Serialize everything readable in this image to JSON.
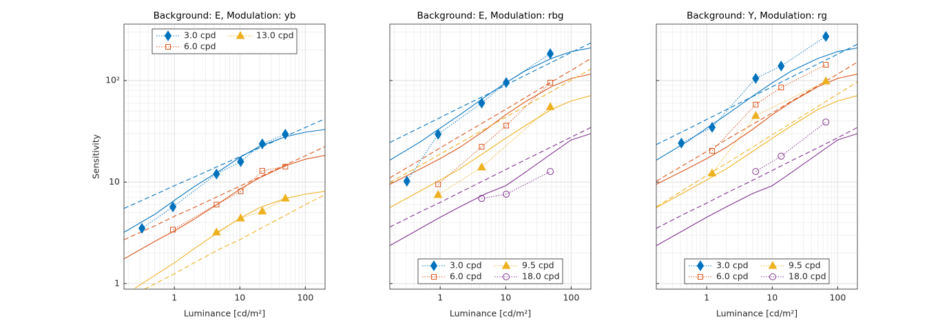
{
  "chart_data": [
    {
      "type": "line",
      "title": "Background: E, Modulation: yb",
      "xlabel": "Luminance [cd/m²]",
      "ylabel": "Sensitivity",
      "xscale": "log",
      "yscale": "log",
      "xlim": [
        0.17,
        200
      ],
      "ylim": [
        0.88,
        360
      ],
      "xticks": [
        1,
        10,
        100
      ],
      "yticks": [
        1,
        10,
        {
          "value": 100,
          "label": "10²"
        }
      ],
      "ytick_labels": true,
      "grid": true,
      "minor_grid": true,
      "legend": "top",
      "legend_columns": 2,
      "series": [
        {
          "name": "3.0 cpd",
          "color": "#0072BD",
          "marker": "diamond",
          "x": [
            0.32,
            0.95,
            4.4,
            10.3,
            22,
            49.5
          ],
          "values": [
            3.5,
            5.7,
            12,
            15.9,
            23.8,
            29.6
          ]
        },
        {
          "name": "6.0 cpd",
          "color": "#D95319",
          "marker": "square",
          "x": [
            0.95,
            4.4,
            10.3,
            22,
            49.5
          ],
          "values": [
            3.4,
            6.0,
            8.1,
            12.9,
            14.2
          ]
        },
        {
          "name": "13.0 cpd",
          "color": "#EDB120",
          "marker": "triangle",
          "x": [
            4.4,
            10.3,
            22,
            49.5
          ],
          "values": [
            3.2,
            4.4,
            5.15,
            6.9
          ]
        }
      ],
      "fits": [
        {
          "color": "#0072BD",
          "style": "solid",
          "x": [
            0.17,
            0.5,
            1,
            2,
            5,
            10,
            20,
            50,
            100,
            200
          ],
          "values": [
            3.2,
            4.8,
            6.6,
            9.0,
            13.0,
            17.5,
            22.5,
            28,
            31,
            33
          ]
        },
        {
          "color": "#0072BD",
          "style": "dashed",
          "x": [
            0.17,
            0.5,
            1,
            2,
            5,
            10,
            20,
            50,
            100,
            200
          ],
          "values": [
            5.5,
            7.5,
            9.2,
            11.2,
            14.6,
            17.8,
            21.7,
            28.3,
            34.5,
            42
          ]
        },
        {
          "color": "#D95319",
          "style": "solid",
          "x": [
            0.17,
            0.5,
            1,
            2,
            5,
            10,
            20,
            50,
            100,
            200
          ],
          "values": [
            1.75,
            2.6,
            3.3,
            4.3,
            6.3,
            8.5,
            11,
            14.5,
            16.8,
            18.3
          ]
        },
        {
          "color": "#D95319",
          "style": "dashed",
          "x": [
            0.17,
            0.5,
            1,
            2,
            5,
            10,
            20,
            50,
            100,
            200
          ],
          "values": [
            2.7,
            3.7,
            4.6,
            5.6,
            7.4,
            9.1,
            11.2,
            14.8,
            18.1,
            22.4
          ]
        },
        {
          "color": "#EDB120",
          "style": "solid",
          "x": [
            0.25,
            0.5,
            1,
            2,
            5,
            10,
            20,
            50,
            100,
            200
          ],
          "values": [
            0.9,
            1.2,
            1.6,
            2.2,
            3.3,
            4.4,
            5.6,
            6.9,
            7.6,
            8.1
          ]
        },
        {
          "color": "#EDB120",
          "style": "dashed",
          "x": [
            0.35,
            1,
            2,
            5,
            10,
            20,
            50,
            100,
            200
          ],
          "values": [
            0.88,
            1.25,
            1.6,
            2.2,
            2.7,
            3.45,
            4.7,
            6.0,
            7.5
          ]
        }
      ]
    },
    {
      "type": "line",
      "title": "Background: E, Modulation: rbg",
      "xlabel": "Luminance [cd/m²]",
      "xscale": "log",
      "yscale": "log",
      "xlim": [
        0.17,
        200
      ],
      "ylim": [
        0.88,
        360
      ],
      "xticks": [
        1,
        10,
        100
      ],
      "yticks": [
        1,
        10,
        100
      ],
      "ytick_labels": false,
      "grid": true,
      "minor_grid": true,
      "legend": "bottom",
      "legend_columns": 2,
      "series": [
        {
          "name": "3.0 cpd",
          "color": "#0072BD",
          "marker": "diamond",
          "x": [
            0.31,
            0.93,
            4.3,
            10.2,
            48
          ],
          "values": [
            10.2,
            29.6,
            60,
            95.5,
            184
          ]
        },
        {
          "name": "6.0 cpd",
          "color": "#D95319",
          "marker": "square",
          "x": [
            0.93,
            4.3,
            10.2,
            48
          ],
          "values": [
            9.5,
            22.3,
            36,
            95.5
          ]
        },
        {
          "name": "9.5 cpd",
          "color": "#EDB120",
          "marker": "triangle",
          "x": [
            0.93,
            4.3,
            48
          ],
          "values": [
            7.5,
            14,
            55
          ]
        },
        {
          "name": "18.0 cpd",
          "color": "#7E2F8E",
          "marker": "circle",
          "x": [
            4.3,
            10.2,
            48
          ],
          "values": [
            6.9,
            7.6,
            12.7
          ]
        }
      ],
      "fits": [
        {
          "color": "#0072BD",
          "style": "solid",
          "x": [
            0.17,
            0.5,
            1,
            2,
            5,
            10,
            20,
            50,
            100,
            200
          ],
          "values": [
            16.4,
            25,
            34,
            46,
            70,
            95,
            125,
            165,
            193,
            210
          ]
        },
        {
          "color": "#0072BD",
          "style": "dashed",
          "x": [
            0.17,
            0.5,
            1,
            2,
            5,
            10,
            20,
            50,
            100,
            200
          ],
          "values": [
            24.5,
            34.6,
            43.2,
            54,
            72,
            90,
            113,
            151,
            189,
            235
          ]
        },
        {
          "color": "#D95319",
          "style": "solid",
          "x": [
            0.17,
            0.5,
            1,
            2,
            5,
            10,
            20,
            50,
            100,
            200
          ],
          "values": [
            9.5,
            13.5,
            17,
            22,
            33,
            46,
            62,
            87,
            105,
            116
          ]
        },
        {
          "color": "#D95319",
          "style": "dashed",
          "x": [
            0.17,
            0.5,
            1,
            2,
            5,
            10,
            20,
            50,
            100,
            200
          ],
          "values": [
            11,
            16.6,
            21.7,
            28.3,
            40,
            52,
            68,
            97,
            126,
            165
          ]
        },
        {
          "color": "#EDB120",
          "style": "solid",
          "x": [
            0.17,
            0.5,
            1,
            2,
            5,
            10,
            20,
            50,
            100,
            200
          ],
          "values": [
            5.6,
            8.2,
            10.5,
            13.5,
            20,
            27,
            36,
            52,
            63,
            71
          ]
        },
        {
          "color": "#EDB120",
          "style": "dashed",
          "x": [
            0.17,
            0.5,
            1,
            2,
            5,
            10,
            20,
            50,
            100,
            200
          ],
          "values": [
            9.9,
            14.6,
            18.9,
            24.3,
            33.9,
            43.6,
            56,
            78,
            101,
            130
          ]
        },
        {
          "color": "#7E2F8E",
          "style": "solid",
          "x": [
            0.17,
            0.5,
            1,
            2,
            5,
            10,
            20,
            50,
            100,
            200
          ],
          "values": [
            2.36,
            3.5,
            4.5,
            5.7,
            7.7,
            9.2,
            12.5,
            19,
            26,
            30
          ]
        },
        {
          "color": "#7E2F8E",
          "style": "dashed",
          "x": [
            0.17,
            0.5,
            1,
            2,
            5,
            10,
            20,
            50,
            100,
            200
          ],
          "values": [
            3.6,
            5.1,
            6.3,
            7.9,
            10.6,
            13.3,
            16.6,
            22.2,
            27.7,
            34.5
          ]
        }
      ]
    },
    {
      "type": "line",
      "title": "Background: Y, Modulation: rg",
      "xlabel": "Luminance [cd/m²]",
      "xscale": "log",
      "yscale": "log",
      "xlim": [
        0.17,
        200
      ],
      "ylim": [
        0.88,
        360
      ],
      "xticks": [
        1,
        10,
        100
      ],
      "yticks": [
        1,
        10,
        100
      ],
      "ytick_labels": false,
      "grid": true,
      "minor_grid": true,
      "legend": "bottom",
      "legend_columns": 2,
      "series": [
        {
          "name": "3.0 cpd",
          "color": "#0072BD",
          "marker": "diamond",
          "x": [
            0.41,
            1.21,
            5.6,
            13.7,
            66
          ],
          "values": [
            24.2,
            34.6,
            105,
            139,
            272
          ]
        },
        {
          "name": "6.0 cpd",
          "color": "#D95319",
          "marker": "square",
          "x": [
            1.21,
            5.6,
            13.7,
            66
          ],
          "values": [
            20.3,
            58,
            85.5,
            143
          ]
        },
        {
          "name": "9.5 cpd",
          "color": "#EDB120",
          "marker": "triangle",
          "x": [
            1.21,
            5.6,
            66
          ],
          "values": [
            12.2,
            45,
            98.5
          ]
        },
        {
          "name": "18.0 cpd",
          "color": "#7E2F8E",
          "marker": "circle",
          "x": [
            5.6,
            13.7,
            66
          ],
          "values": [
            12.7,
            18,
            39
          ]
        }
      ],
      "fits": [
        {
          "color": "#0072BD",
          "style": "solid",
          "x": [
            0.17,
            0.5,
            1,
            2,
            5,
            10,
            20,
            50,
            100,
            200
          ],
          "values": [
            16.4,
            25,
            34,
            46,
            70,
            95,
            125,
            165,
            193,
            210
          ]
        },
        {
          "color": "#0072BD",
          "style": "dashed",
          "x": [
            0.17,
            0.5,
            1,
            2,
            5,
            10,
            20,
            50,
            100,
            200
          ],
          "values": [
            23.4,
            33,
            41.4,
            51.7,
            69.5,
            87,
            109,
            146,
            182,
            228
          ]
        },
        {
          "color": "#D95319",
          "style": "solid",
          "x": [
            0.17,
            0.5,
            1,
            2,
            5,
            10,
            20,
            50,
            100,
            200
          ],
          "values": [
            9.5,
            13.5,
            17,
            22,
            33,
            46,
            62,
            87,
            105,
            116
          ]
        },
        {
          "color": "#D95319",
          "style": "dashed",
          "x": [
            0.17,
            0.5,
            1,
            2,
            5,
            10,
            20,
            50,
            100,
            200
          ],
          "values": [
            10.2,
            15.4,
            20,
            26.2,
            37,
            48,
            63,
            89,
            116,
            152
          ]
        },
        {
          "color": "#EDB120",
          "style": "solid",
          "x": [
            0.17,
            0.5,
            1,
            2,
            5,
            10,
            20,
            50,
            100,
            200
          ],
          "values": [
            5.6,
            8.2,
            10.5,
            13.5,
            20,
            27,
            36,
            52,
            63,
            71
          ]
        },
        {
          "color": "#EDB120",
          "style": "dashed",
          "x": [
            0.17,
            0.5,
            1,
            2,
            5,
            10,
            20,
            50,
            100,
            200
          ],
          "values": [
            5.7,
            8.8,
            11.6,
            15.3,
            22,
            29.2,
            38.5,
            55.7,
            73.5,
            97
          ]
        },
        {
          "color": "#7E2F8E",
          "style": "solid",
          "x": [
            0.17,
            0.5,
            1,
            2,
            5,
            10,
            20,
            50,
            100,
            200
          ],
          "values": [
            2.36,
            3.5,
            4.5,
            5.7,
            7.7,
            9.2,
            12.5,
            19,
            26,
            30
          ]
        },
        {
          "color": "#7E2F8E",
          "style": "dashed",
          "x": [
            0.17,
            0.5,
            1,
            2,
            5,
            10,
            20,
            50,
            100,
            200
          ],
          "values": [
            3.5,
            5.0,
            6.2,
            7.8,
            10.4,
            13.0,
            16.3,
            21.8,
            27.3,
            34.5
          ]
        }
      ]
    }
  ]
}
